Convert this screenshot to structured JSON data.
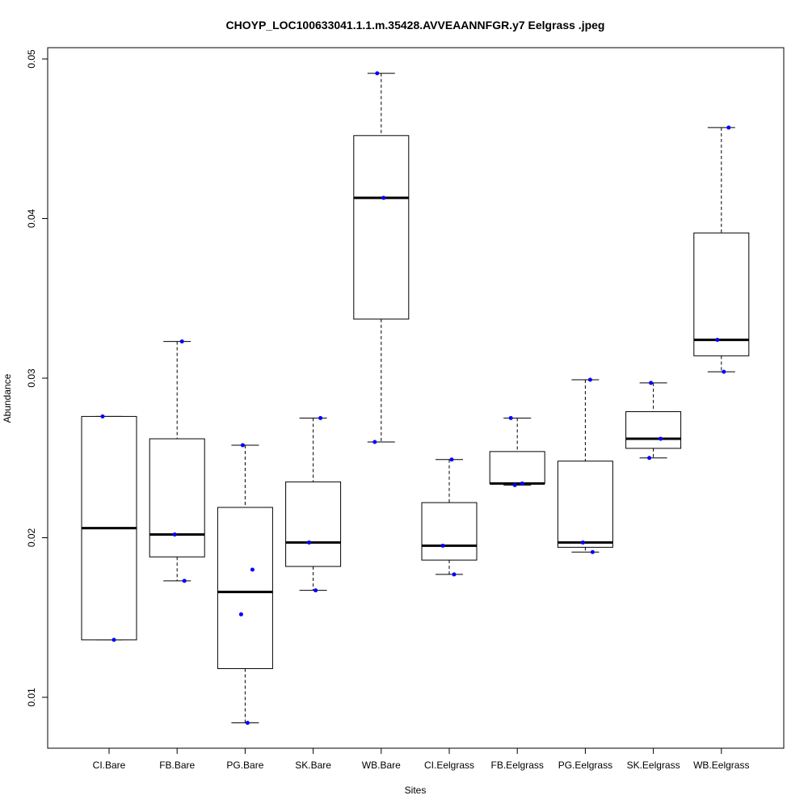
{
  "chart_data": {
    "type": "boxplot",
    "title": "CHOYP_LOC100633041.1.1.m.35428.AVVEAANNFGR.y7 Eelgrass .jpeg",
    "xlabel": "Sites",
    "ylabel": "Abundance",
    "ylim": [
      0.007,
      0.051
    ],
    "yticks": [
      0.01,
      0.02,
      0.03,
      0.04,
      0.05
    ],
    "ytick_labels": [
      "0.01",
      "0.02",
      "0.03",
      "0.04",
      "0.05"
    ],
    "categories": [
      "CI.Bare",
      "FB.Bare",
      "PG.Bare",
      "SK.Bare",
      "WB.Bare",
      "CI.Eelgrass",
      "FB.Eelgrass",
      "PG.Eelgrass",
      "SK.Eelgrass",
      "WB.Eelgrass"
    ],
    "boxes": [
      {
        "min": 0.0136,
        "q1": 0.0136,
        "median": 0.0206,
        "q3": 0.0276,
        "max": 0.0276,
        "points": [
          0.0276,
          0.0136
        ]
      },
      {
        "min": 0.0173,
        "q1": 0.0188,
        "median": 0.0202,
        "q3": 0.0262,
        "max": 0.0323,
        "points": [
          0.0323,
          0.0202,
          0.0173
        ]
      },
      {
        "min": 0.0084,
        "q1": 0.0118,
        "median": 0.0166,
        "q3": 0.0219,
        "max": 0.0258,
        "points": [
          0.0258,
          0.018,
          0.0152,
          0.0084
        ]
      },
      {
        "min": 0.0167,
        "q1": 0.0182,
        "median": 0.0197,
        "q3": 0.0235,
        "max": 0.0275,
        "points": [
          0.0275,
          0.0197,
          0.0167
        ]
      },
      {
        "min": 0.026,
        "q1": 0.0337,
        "median": 0.0413,
        "q3": 0.0452,
        "max": 0.0491,
        "points": [
          0.0491,
          0.0413,
          0.026
        ]
      },
      {
        "min": 0.0177,
        "q1": 0.0186,
        "median": 0.0195,
        "q3": 0.0222,
        "max": 0.0249,
        "points": [
          0.0249,
          0.0195,
          0.0177
        ]
      },
      {
        "min": 0.0233,
        "q1": 0.0234,
        "median": 0.0234,
        "q3": 0.0254,
        "max": 0.0275,
        "points": [
          0.0275,
          0.0234,
          0.0233
        ]
      },
      {
        "min": 0.0191,
        "q1": 0.0194,
        "median": 0.0197,
        "q3": 0.0248,
        "max": 0.0299,
        "points": [
          0.0299,
          0.0197,
          0.0191
        ]
      },
      {
        "min": 0.025,
        "q1": 0.0256,
        "median": 0.0262,
        "q3": 0.0279,
        "max": 0.0297,
        "points": [
          0.0297,
          0.0262,
          0.025
        ]
      },
      {
        "min": 0.0304,
        "q1": 0.0314,
        "median": 0.0324,
        "q3": 0.0391,
        "max": 0.0457,
        "points": [
          0.0457,
          0.0324,
          0.0304
        ]
      }
    ],
    "point_color": "#0000ff",
    "grid": false
  }
}
